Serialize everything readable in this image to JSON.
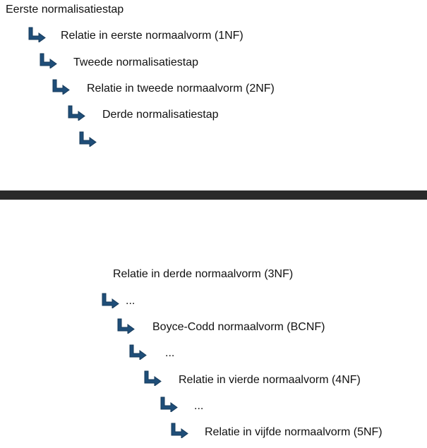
{
  "top_section": {
    "title": "Eerste normalisatiestap",
    "steps": [
      "Relatie in eerste normaalvorm (1NF)",
      "Tweede normalisatiestap",
      "Relatie in tweede normaalvorm (2NF)",
      "Derde normalisatiestap",
      ""
    ]
  },
  "bottom_section": {
    "title": "Relatie in derde normaalvorm (3NF)",
    "steps": [
      "...",
      "Boyce-Codd normaalvorm (BCNF)",
      "...",
      "Relatie in vierde normaalvorm (4NF)",
      "...",
      "Relatie in vijfde normaalvorm (5NF)"
    ]
  },
  "colors": {
    "arrow_fill": "#1f4e79",
    "arrow_stroke": "#163a5a",
    "divider": "#2a2a2a"
  },
  "icons": {
    "step_arrow": "arrow-down-right-icon"
  }
}
